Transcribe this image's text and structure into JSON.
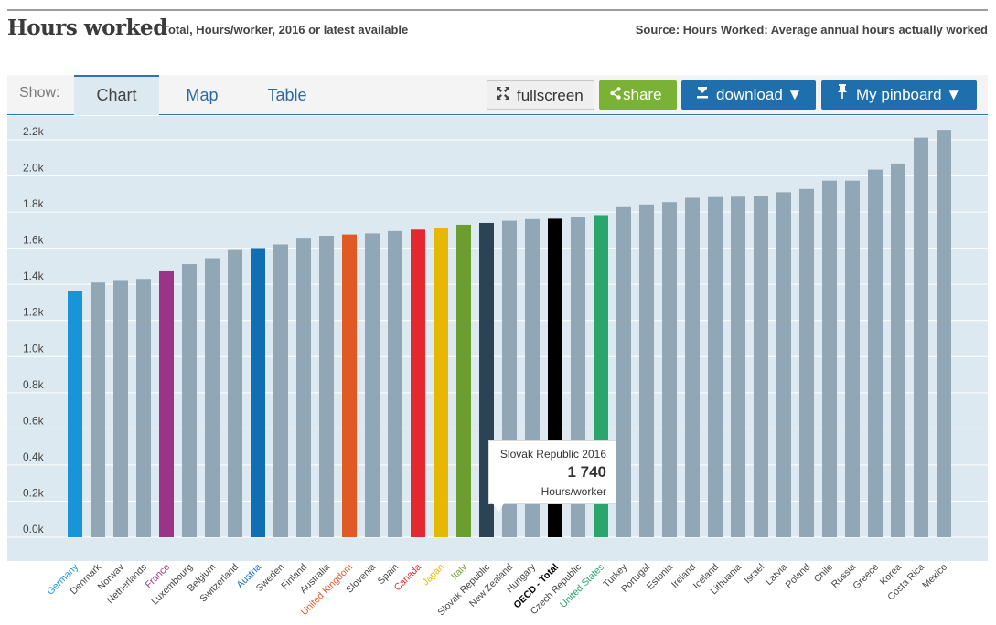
{
  "header": {
    "title": "Hours worked",
    "subtitle": "Total, Hours/worker, 2016 or latest available",
    "source": "Source: Hours Worked: Average annual hours actually worked"
  },
  "toolbar": {
    "show_label": "Show:",
    "tabs": [
      {
        "label": "Chart",
        "active": true
      },
      {
        "label": "Map",
        "active": false
      },
      {
        "label": "Table",
        "active": false
      }
    ],
    "fullscreen_label": "fullscreen",
    "share_label": "share",
    "download_label": "download ▼",
    "pinboard_label": "My pinboard ▼"
  },
  "tooltip": {
    "label": "Slovak Republic 2016",
    "value": "1 740",
    "unit": "Hours/worker"
  },
  "colors": {
    "default_bar": "#91a7b5",
    "plot_background": "#dde9f1",
    "gridline": "#ffffff",
    "accent": "#1f6fac",
    "share_green": "#79b235"
  },
  "chart_data": {
    "type": "bar",
    "title": "Hours worked",
    "ylim": [
      0,
      2300
    ],
    "yticks": [
      0,
      200,
      400,
      600,
      800,
      1000,
      1200,
      1400,
      1600,
      1800,
      2000,
      2200
    ],
    "ytick_labels": [
      "0.0k",
      "0.2k",
      "0.4k",
      "0.6k",
      "0.8k",
      "1.0k",
      "1.2k",
      "1.4k",
      "1.6k",
      "1.8k",
      "2.0k",
      "2.2k"
    ],
    "grid": true,
    "categories": [
      "Germany",
      "Denmark",
      "Norway",
      "Netherlands",
      "France",
      "Luxembourg",
      "Belgium",
      "Switzerland",
      "Austria",
      "Sweden",
      "Finland",
      "Australia",
      "United Kingdom",
      "Slovenia",
      "Spain",
      "Canada",
      "Japan",
      "Italy",
      "Slovak Republic",
      "New Zealand",
      "Hungary",
      "OECD - Total",
      "Czech Republic",
      "United States",
      "Turkey",
      "Portugal",
      "Estonia",
      "Ireland",
      "Iceland",
      "Lithuania",
      "Israel",
      "Latvia",
      "Poland",
      "Chile",
      "Russia",
      "Greece",
      "Korea",
      "Costa Rica",
      "Mexico"
    ],
    "values": [
      1363,
      1410,
      1424,
      1430,
      1472,
      1512,
      1545,
      1590,
      1601,
      1621,
      1653,
      1669,
      1676,
      1682,
      1695,
      1703,
      1713,
      1730,
      1740,
      1752,
      1761,
      1763,
      1772,
      1783,
      1832,
      1842,
      1855,
      1879,
      1883,
      1885,
      1889,
      1910,
      1928,
      1974,
      1974,
      2035,
      2069,
      2212,
      2255
    ],
    "bar_colors": [
      "#1a94d9",
      "#91a7b5",
      "#91a7b5",
      "#91a7b5",
      "#993489",
      "#91a7b5",
      "#91a7b5",
      "#91a7b5",
      "#0f6eb4",
      "#91a7b5",
      "#91a7b5",
      "#91a7b5",
      "#e15a26",
      "#91a7b5",
      "#91a7b5",
      "#e3282f",
      "#e6b800",
      "#6c9d30",
      "#2b4455",
      "#91a7b5",
      "#91a7b5",
      "#000000",
      "#91a7b5",
      "#2aa56b",
      "#91a7b5",
      "#91a7b5",
      "#91a7b5",
      "#91a7b5",
      "#91a7b5",
      "#91a7b5",
      "#91a7b5",
      "#91a7b5",
      "#91a7b5",
      "#91a7b5",
      "#91a7b5",
      "#91a7b5",
      "#91a7b5",
      "#91a7b5",
      "#91a7b5"
    ],
    "label_colors": [
      "#1a94d9",
      "#444444",
      "#444444",
      "#444444",
      "#993489",
      "#444444",
      "#444444",
      "#444444",
      "#0f6eb4",
      "#444444",
      "#444444",
      "#444444",
      "#e15a26",
      "#444444",
      "#444444",
      "#e3282f",
      "#e6b800",
      "#6c9d30",
      "#444444",
      "#444444",
      "#444444",
      "#000000",
      "#444444",
      "#2aa56b",
      "#444444",
      "#444444",
      "#444444",
      "#444444",
      "#444444",
      "#444444",
      "#444444",
      "#444444",
      "#444444",
      "#444444",
      "#444444",
      "#444444",
      "#444444",
      "#444444",
      "#444444"
    ],
    "label_bold": [
      "OECD - Total"
    ]
  }
}
